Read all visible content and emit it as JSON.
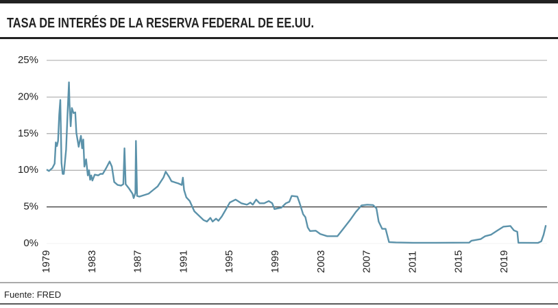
{
  "chart_data": {
    "type": "line",
    "title": "TASA DE INTERÉS DE LA RESERVA FEDERAL DE EE.UU.",
    "source": "Fuente: FRED",
    "color": "#5b92aa",
    "grid": true,
    "highlight_tick": 5,
    "xlim": [
      1979,
      2022.7
    ],
    "xticks": [
      1979,
      1983,
      1987,
      1991,
      1995,
      1999,
      2003,
      2007,
      2011,
      2015,
      2019
    ],
    "ylim": [
      0,
      25
    ],
    "yticks": [
      {
        "value": 0,
        "label": "0%"
      },
      {
        "value": 5,
        "label": "5%"
      },
      {
        "value": 10,
        "label": "10%"
      },
      {
        "value": 15,
        "label": "15%"
      },
      {
        "value": 20,
        "label": "20%"
      },
      {
        "value": 25,
        "label": "25%"
      }
    ],
    "x": [
      1979.0,
      1979.2,
      1979.5,
      1979.7,
      1979.8,
      1979.9,
      1980.0,
      1980.1,
      1980.2,
      1980.3,
      1980.4,
      1980.5,
      1980.7,
      1980.85,
      1980.95,
      1981.0,
      1981.1,
      1981.2,
      1981.35,
      1981.5,
      1981.6,
      1981.8,
      1981.9,
      1982.0,
      1982.1,
      1982.2,
      1982.3,
      1982.45,
      1982.6,
      1982.7,
      1982.8,
      1982.9,
      1983.0,
      1983.2,
      1983.5,
      1983.7,
      1983.9,
      1984.2,
      1984.5,
      1984.7,
      1984.9,
      1985.2,
      1985.5,
      1985.7,
      1985.8,
      1985.9,
      1986.2,
      1986.5,
      1986.6,
      1986.75,
      1986.8,
      1986.9,
      1987.1,
      1987.5,
      1987.9,
      1988.3,
      1988.7,
      1989.2,
      1989.4,
      1989.7,
      1989.9,
      1990.5,
      1990.8,
      1990.9,
      1991.0,
      1991.2,
      1991.5,
      1991.9,
      1992.3,
      1992.7,
      1993.0,
      1993.3,
      1993.5,
      1993.8,
      1994.0,
      1994.3,
      1994.6,
      1995.0,
      1995.5,
      1996.0,
      1996.5,
      1996.8,
      1997.0,
      1997.3,
      1997.6,
      1998.0,
      1998.4,
      1998.7,
      1998.9,
      1999.2,
      1999.5,
      1999.9,
      2000.2,
      2000.4,
      2000.9,
      2001.1,
      2001.4,
      2001.6,
      2001.8,
      2002.0,
      2002.5,
      2002.9,
      2003.5,
      2004.0,
      2004.4,
      2004.9,
      2005.5,
      2006.0,
      2006.5,
      2007.0,
      2007.5,
      2007.8,
      2008.0,
      2008.3,
      2008.6,
      2008.9,
      2009.5,
      2011.0,
      2013.0,
      2015.9,
      2016.1,
      2016.9,
      2017.3,
      2017.8,
      2018.3,
      2018.9,
      2019.5,
      2019.8,
      2020.1,
      2020.2,
      2021.9,
      2022.2,
      2022.4,
      2022.6
    ],
    "series": [
      {
        "name": "Tasa",
        "values": [
          10.1,
          9.9,
          10.3,
          10.9,
          13.8,
          13.3,
          14.0,
          17.6,
          19.6,
          11.0,
          9.5,
          9.5,
          12.8,
          18.5,
          22.0,
          19.1,
          16.0,
          18.5,
          17.8,
          17.9,
          15.1,
          13.2,
          14.0,
          14.7,
          13.0,
          14.2,
          10.5,
          11.5,
          9.3,
          10.0,
          8.7,
          9.3,
          8.6,
          9.4,
          9.3,
          9.5,
          9.5,
          10.3,
          11.2,
          10.5,
          8.4,
          8.0,
          7.9,
          8.1,
          13.0,
          8.1,
          7.5,
          6.8,
          6.2,
          6.9,
          14.0,
          6.5,
          6.4,
          6.6,
          6.8,
          7.3,
          7.8,
          9.0,
          9.8,
          9.1,
          8.5,
          8.2,
          8.0,
          9.0,
          7.3,
          6.3,
          5.8,
          4.4,
          3.8,
          3.2,
          3.0,
          3.5,
          3.0,
          3.4,
          3.1,
          3.7,
          4.5,
          5.6,
          6.0,
          5.5,
          5.3,
          5.6,
          5.3,
          6.0,
          5.5,
          5.5,
          5.8,
          5.5,
          4.7,
          4.8,
          4.9,
          5.5,
          5.7,
          6.5,
          6.4,
          5.5,
          4.0,
          3.6,
          2.2,
          1.7,
          1.75,
          1.3,
          1.0,
          1.0,
          1.0,
          2.0,
          3.2,
          4.3,
          5.2,
          5.3,
          5.25,
          4.8,
          3.0,
          2.0,
          2.0,
          0.2,
          0.15,
          0.1,
          0.1,
          0.12,
          0.38,
          0.6,
          1.0,
          1.2,
          1.7,
          2.3,
          2.4,
          1.8,
          1.6,
          0.1,
          0.08,
          0.3,
          1.2,
          2.5
        ]
      }
    ]
  }
}
